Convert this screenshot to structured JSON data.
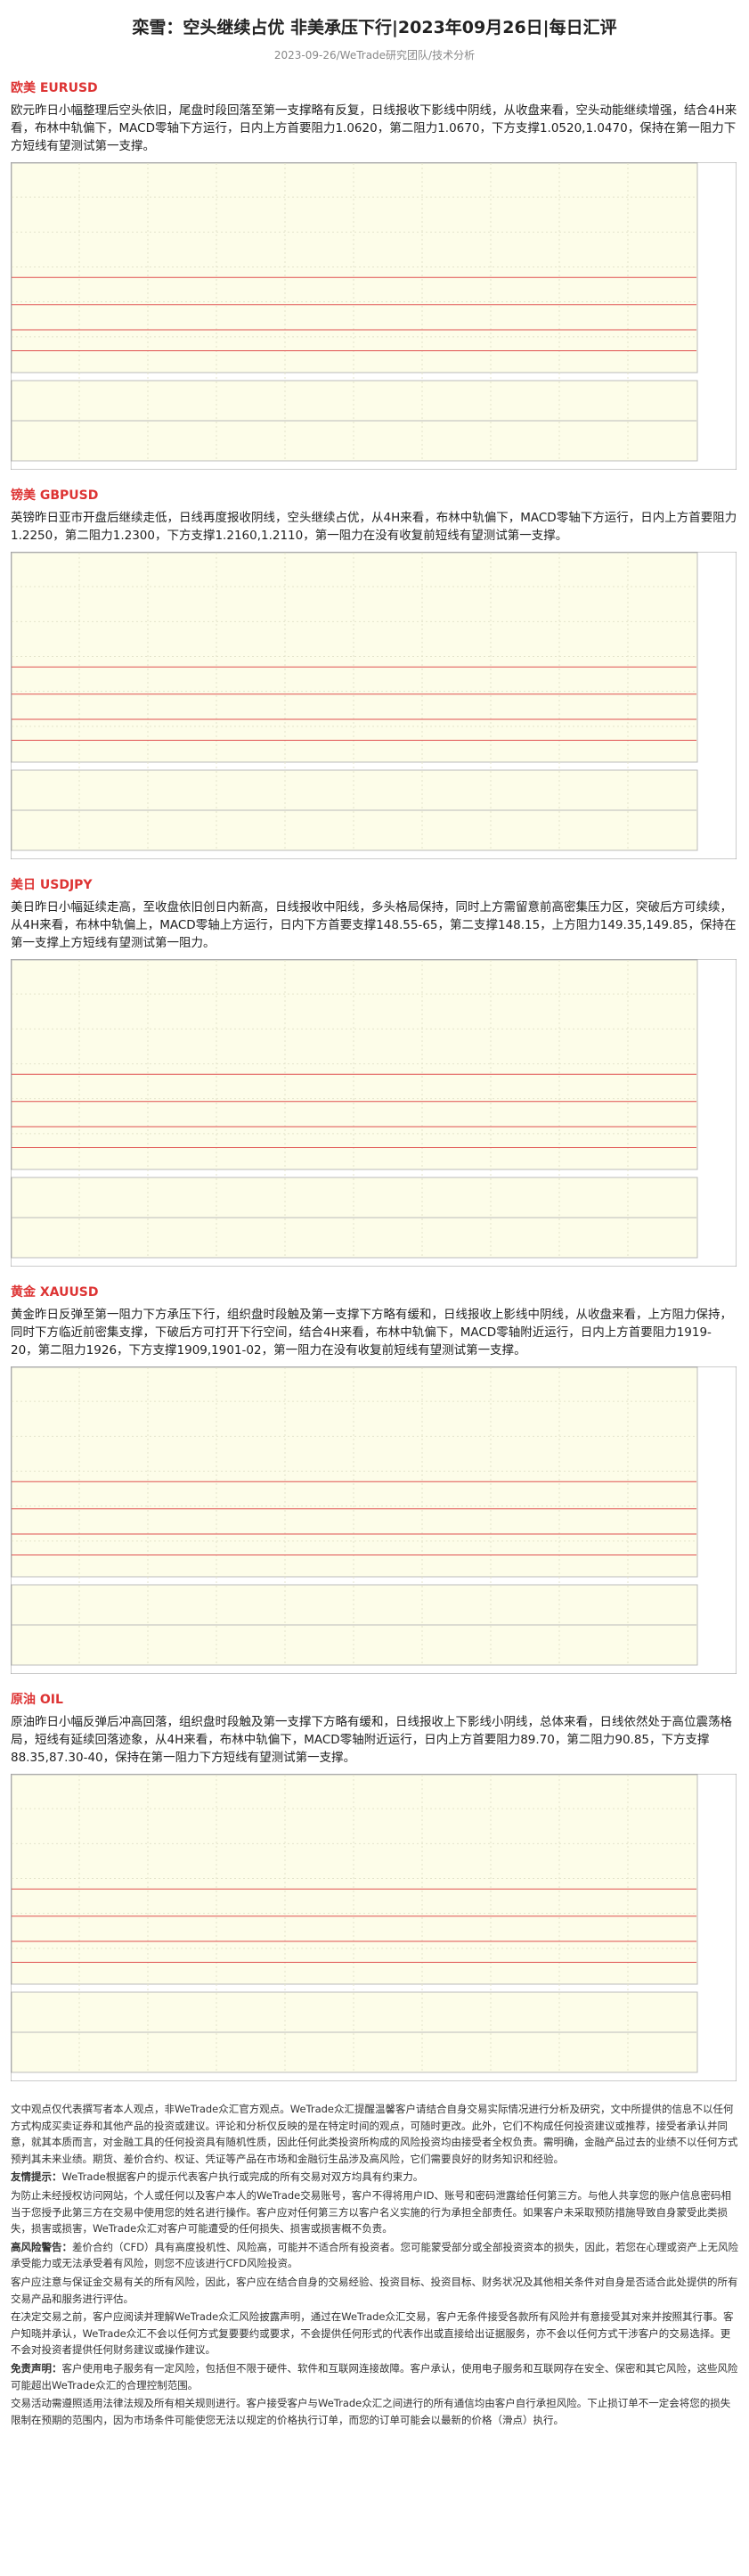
{
  "header": {
    "title": "栾雪：空头继续占优 非美承压下行|2023年09月26日|每日汇评",
    "subtitle": "2023-09-26/WeTrade研究团队/技术分析"
  },
  "sections": [
    {
      "heading": "欧美 EURUSD",
      "text": "欧元昨日小幅整理后空头依旧，尾盘时段回落至第一支撑略有反复，日线报收下影线中阴线，从收盘来看，空头动能继续增强，结合4H来看，布林中轨偏下，MACD零轴下方运行，日内上方首要阻力1.0620，第二阻力1.0670，下方支撑1.0520,1.0470，保持在第一阻力下方短线有望测试第一支撑。"
    },
    {
      "heading": "镑美 GBPUSD",
      "text": "英镑昨日亚市开盘后继续走低，日线再度报收阴线，空头继续占优，从4H来看，布林中轨偏下，MACD零轴下方运行，日内上方首要阻力1.2250，第二阻力1.2300，下方支撑1.2160,1.2110，第一阻力在没有收复前短线有望测试第一支撑。"
    },
    {
      "heading": "美日 USDJPY",
      "text": "美日昨日小幅延续走高，至收盘依旧创日内新高，日线报收中阳线，多头格局保持，同时上方需留意前高密集压力区，突破后方可续续，从4H来看，布林中轨偏上，MACD零轴上方运行，日内下方首要支撑148.55-65，第二支撑148.15，上方阻力149.35,149.85，保持在第一支撑上方短线有望测试第一阻力。"
    },
    {
      "heading": "黄金 XAUUSD",
      "text": "黄金昨日反弹至第一阻力下方承压下行，组织盘时段触及第一支撑下方略有缓和，日线报收上影线中阴线，从收盘来看，上方阻力保持，同时下方临近前密集支撑，下破后方可打开下行空间，结合4H来看，布林中轨偏下，MACD零轴附近运行，日内上方首要阻力1919-20，第二阻力1926，下方支撑1909,1901-02，第一阻力在没有收复前短线有望测试第一支撑。"
    },
    {
      "heading": "原油 OIL",
      "text": "原油昨日小幅反弹后冲高回落，组织盘时段触及第一支撑下方略有缓和，日线报收上下影线小阴线，总体来看，日线依然处于高位震荡格局，短线有延续回落迹象，从4H来看，布林中轨偏下，MACD零轴附近运行，日内上方首要阻力89.70，第二阻力90.85，下方支撑88.35,87.30-40，保持在第一阻力下方短线有望测试第一支撑。"
    }
  ],
  "disclaimer": [
    {
      "text": "文中观点仅代表撰写者本人观点，非WeTrade众汇官方观点。WeTrade众汇提醒温馨客户请结合自身交易实际情况进行分析及研究，文中所提供的信息不以任何方式构成买卖证券和其他产品的投资或建议。评论和分析仅反映的是在特定时间的观点，可随时更改。此外，它们不构成任何投资建议或推荐，接受者承认并同意，就其本质而言，对金融工具的任何投资具有随机性质，因此任何此类投资所构成的风险投资均由接受者全权负责。需明确，金融产品过去的业绩不以任何方式预判其未来业绩。期货、差价合约、权证、凭证等产品在市场和金融衍生品涉及高风险，它们需要良好的财务知识和经验。"
    },
    {
      "label": "友情提示：",
      "text": "WeTrade根据客户的提示代表客户执行或完成的所有交易对双方均具有约束力。"
    },
    {
      "text": "为防止未经授权访问网站，个人或任何以及客户本人的WeTrade交易账号，客户不得将用户ID、账号和密码泄露给任何第三方。与他人共享您的账户信息密码相当于您授予此第三方在交易中使用您的姓名进行操作。客户应对任何第三方以客户名义实施的行为承担全部责任。如果客户未采取预防措施导致自身蒙受此类损失，损害或损害，WeTrade众汇对客户可能遭受的任何损失、损害或损害概不负责。"
    },
    {
      "label": "高风险警告：",
      "text": "差价合约（CFD）具有高度投机性、风险高，可能并不适合所有投资者。您可能蒙受部分或全部投资资本的损失，因此，若您在心理或资产上无风险承受能力或无法承受着有风险，则您不应该进行CFD风险投资。"
    },
    {
      "text": "客户应注意与保证金交易有关的所有风险，因此，客户应在结合自身的交易经验、投资目标、投资目标、财务状况及其他相关条件对自身是否适合此处提供的所有交易产品和服务进行评估。"
    },
    {
      "text": "在决定交易之前，客户应阅读并理解WeTrade众汇风险披露声明，通过在WeTrade众汇交易，客户无条件接受各款所有风险并有意接受其对来并按照其行事。客户知晓并承认，WeTrade众汇不会以任何方式复要要约或要求，不会提供任何形式的代表作出或直接给出证据服务，亦不会以任何方式干涉客户的交易选择。更不会对投资者提供任何财务建议或操作建议。"
    },
    {
      "label": "免责声明：",
      "text": "客户使用电子服务有一定风险，包括但不限于硬件、软件和互联网连接故障。客户承认，使用电子服务和互联网存在安全、保密和其它风险，这些风险可能超出WeTrade众汇的合理控制范围。"
    },
    {
      "text": "交易活动需遵照适用法律法规及所有相关规则进行。客户接受客户与WeTrade众汇之间进行的所有通信均由客户自行承担风险。下止损订单不一定会将您的损失限制在预期的范围内，因为市场条件可能使您无法以规定的价格执行订单，而您的订单可能会以最新的价格（滑点）执行。"
    }
  ]
}
